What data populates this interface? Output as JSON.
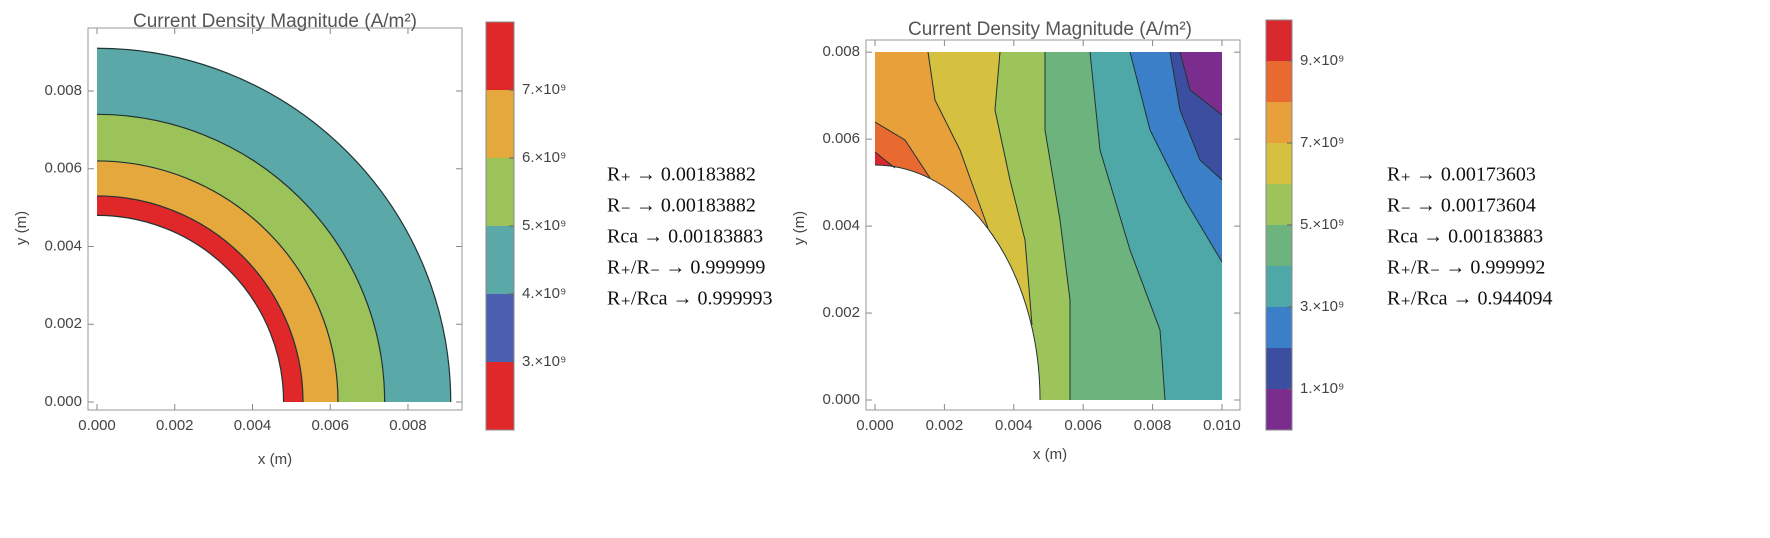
{
  "chart_data": [
    {
      "type": "contour",
      "title": "Current Density Magnitude (A/m²)",
      "xlabel": "x (m)",
      "ylabel": "y (m)",
      "xlim": [
        -0.000232,
        0.00939
      ],
      "ylim": [
        -0.000206,
        0.00962
      ],
      "xticks": [
        {
          "value": 0,
          "label": "0.000"
        },
        {
          "value": 0.002,
          "label": "0.002"
        },
        {
          "value": 0.004,
          "label": "0.004"
        },
        {
          "value": 0.006,
          "label": "0.006"
        },
        {
          "value": 0.008,
          "label": "0.008"
        }
      ],
      "yticks": [
        {
          "value": 0,
          "label": "0.000"
        },
        {
          "value": 0.002,
          "label": "0.002"
        },
        {
          "value": 0.004,
          "label": "0.004"
        },
        {
          "value": 0.006,
          "label": "0.006"
        },
        {
          "value": 0.008,
          "label": "0.008"
        }
      ],
      "zlim": [
        2000000000,
        8000000000
      ],
      "zticks": [
        {
          "value": 3000000000,
          "label": "3.×10⁹"
        },
        {
          "value": 4000000000,
          "label": "4.×10⁹"
        },
        {
          "value": 5000000000,
          "label": "5.×10⁹"
        },
        {
          "value": 6000000000,
          "label": "6.×10⁹"
        },
        {
          "value": 7000000000,
          "label": "7.×10⁹"
        }
      ],
      "colors": [
        "#e0272a",
        "#4a5fb0",
        "#5aa8a8",
        "#9bc35a",
        "#e5a83c",
        "#e0272a"
      ],
      "contour_radii": [
        0.0048,
        0.0053,
        0.0062,
        0.0074,
        0.0091
      ],
      "annotations": [
        "R₊ → 0.00183882",
        "R₋ → 0.00183882",
        "Rca → 0.00183883",
        "R₊/R₋ → 0.999999",
        "R₊/Rca → 0.999993"
      ]
    },
    {
      "type": "contour",
      "title": "Current Density Magnitude (A/m²)",
      "xlabel": "x (m)",
      "ylabel": "y (m)",
      "xlim": [
        -0.00026,
        0.01052
      ],
      "ylim": [
        -0.00023,
        0.00828
      ],
      "xticks": [
        {
          "value": 0,
          "label": "0.000"
        },
        {
          "value": 0.002,
          "label": "0.002"
        },
        {
          "value": 0.004,
          "label": "0.004"
        },
        {
          "value": 0.006,
          "label": "0.006"
        },
        {
          "value": 0.008,
          "label": "0.008"
        },
        {
          "value": 0.01,
          "label": "0.010"
        }
      ],
      "yticks": [
        {
          "value": 0,
          "label": "0.000"
        },
        {
          "value": 0.002,
          "label": "0.002"
        },
        {
          "value": 0.004,
          "label": "0.004"
        },
        {
          "value": 0.006,
          "label": "0.006"
        },
        {
          "value": 0.008,
          "label": "0.008"
        }
      ],
      "zlim": [
        0,
        10000000000
      ],
      "zticks": [
        {
          "value": 1000000000,
          "label": "1.×10⁹"
        },
        {
          "value": 3000000000,
          "label": "3.×10⁹"
        },
        {
          "value": 5000000000,
          "label": "5.×10⁹"
        },
        {
          "value": 7000000000,
          "label": "7.×10⁹"
        },
        {
          "value": 9000000000,
          "label": "9.×10⁹"
        }
      ],
      "colors": [
        "#7b2d8e",
        "#3b4ea0",
        "#3a7fc8",
        "#4fa8a8",
        "#6db37e",
        "#9cc45a",
        "#d6c040",
        "#e8a03a",
        "#e86a30",
        "#d9272e"
      ],
      "annotations": [
        "R₊ → 0.00173603",
        "R₋ → 0.00173604",
        "Rca → 0.00183883",
        "R₊/R₋ → 0.999992",
        "R₊/Rca → 0.944094"
      ]
    }
  ]
}
